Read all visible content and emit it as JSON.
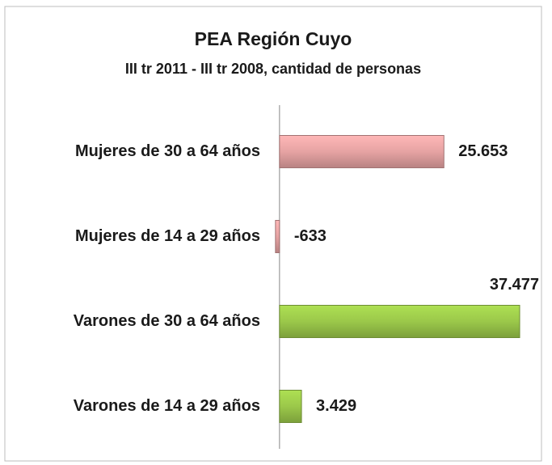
{
  "chart_data": {
    "type": "hbar",
    "title": "PEA Región Cuyo",
    "subtitle": "III tr 2011 - III tr 2008, cantidad de personas",
    "categories": [
      "Mujeres de 30 a 64 años",
      "Mujeres de 14 a 29 años",
      "Varones de 30 a 64 años",
      "Varones de 14 a 29 años"
    ],
    "values": [
      25653,
      -633,
      37477,
      3429
    ],
    "value_labels": [
      "25.653",
      "-633",
      "37.477",
      "3.429"
    ],
    "colors": [
      "#e6a3a3",
      "#e6a3a3",
      "#9bc84a",
      "#9bc84a"
    ],
    "negative_label_color": "#ff0000",
    "xlim": [
      -2000,
      40000
    ]
  }
}
